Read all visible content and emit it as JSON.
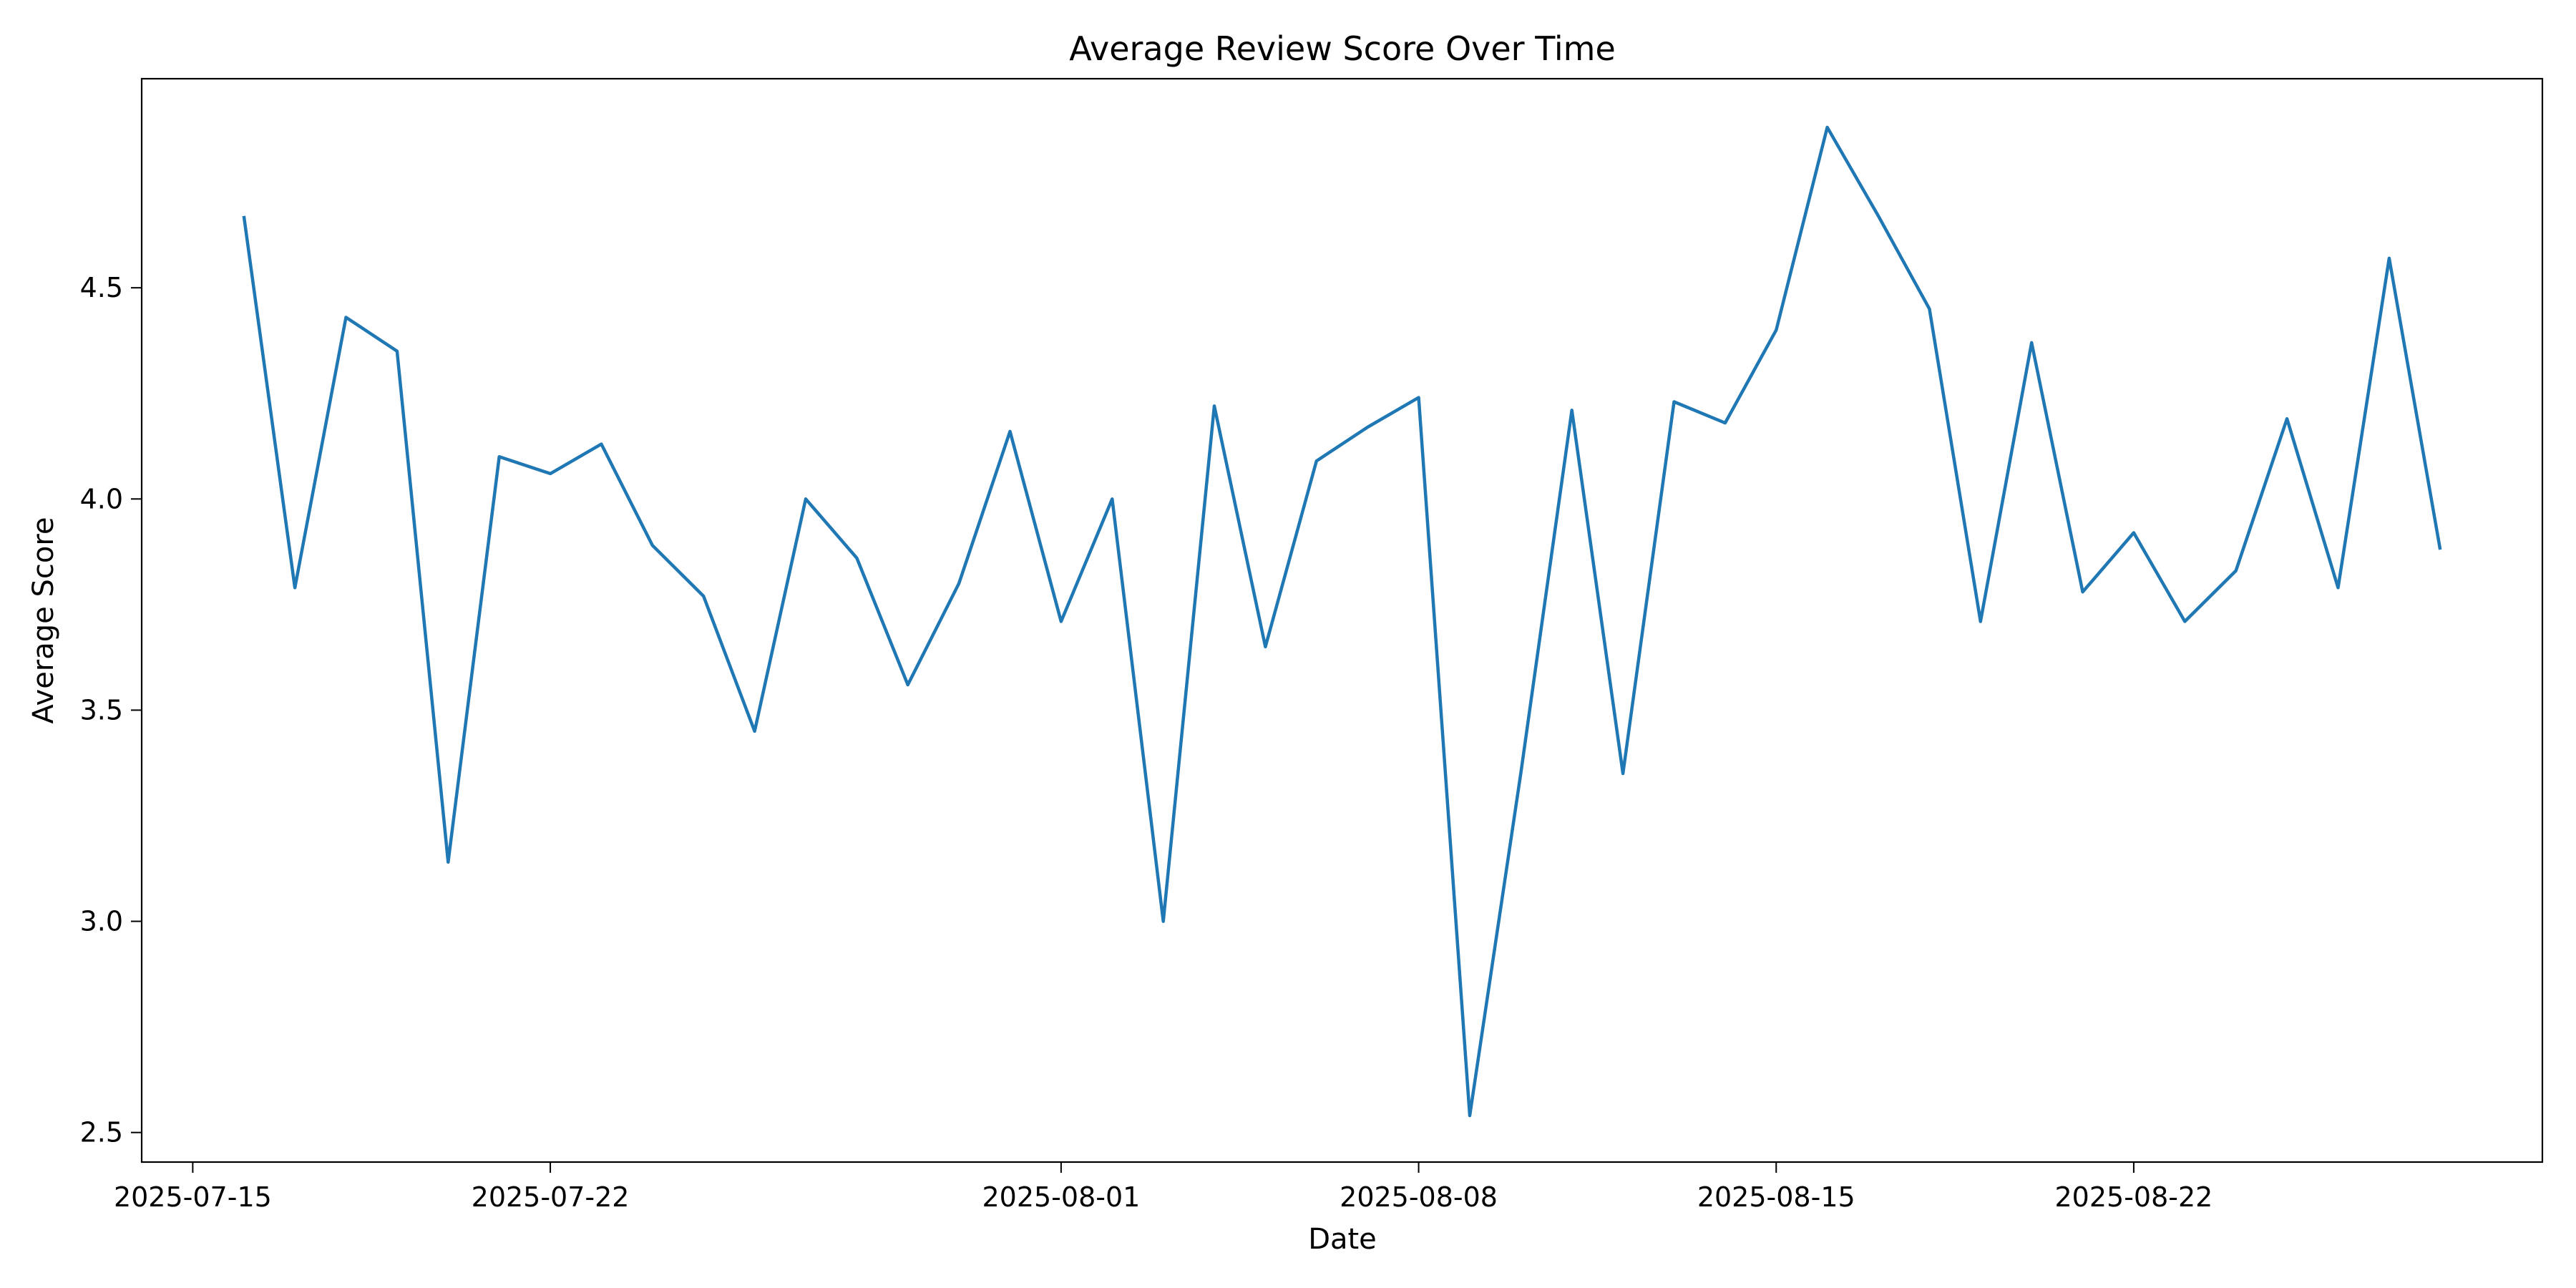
{
  "chart_data": {
    "type": "line",
    "title": "Average Review Score Over Time",
    "xlabel": "Date",
    "ylabel": "Average Score",
    "x_axis_type": "date",
    "xlim": [
      "2025-07-14",
      "2025-08-30"
    ],
    "ylim": [
      2.43,
      4.995
    ],
    "grid": false,
    "legend": "none",
    "x_ticks": [
      "2025-07-15",
      "2025-07-22",
      "2025-08-01",
      "2025-08-08",
      "2025-08-15",
      "2025-08-22"
    ],
    "y_ticks": [
      2.5,
      3.0,
      3.5,
      4.0,
      4.5
    ],
    "y_tick_labels": [
      "2.5",
      "3.0",
      "3.5",
      "4.0",
      "4.5"
    ],
    "colors": {
      "series": "#1f77b4"
    },
    "series": [
      {
        "x": [
          "2025-07-16",
          "2025-07-17",
          "2025-07-18",
          "2025-07-19",
          "2025-07-20",
          "2025-07-21",
          "2025-07-22",
          "2025-07-23",
          "2025-07-24",
          "2025-07-25",
          "2025-07-26",
          "2025-07-27",
          "2025-07-28",
          "2025-07-29",
          "2025-07-30",
          "2025-07-31",
          "2025-08-01",
          "2025-08-02",
          "2025-08-03",
          "2025-08-04",
          "2025-08-05",
          "2025-08-06",
          "2025-08-07",
          "2025-08-08",
          "2025-08-09",
          "2025-08-10",
          "2025-08-11",
          "2025-08-12",
          "2025-08-13",
          "2025-08-14",
          "2025-08-15",
          "2025-08-16",
          "2025-08-17",
          "2025-08-18",
          "2025-08-19",
          "2025-08-20",
          "2025-08-21",
          "2025-08-22",
          "2025-08-23",
          "2025-08-24",
          "2025-08-25",
          "2025-08-26",
          "2025-08-27",
          "2025-08-28"
        ],
        "values": [
          4.67,
          3.79,
          4.43,
          4.35,
          3.14,
          4.1,
          4.06,
          4.13,
          3.89,
          3.77,
          3.45,
          4.0,
          3.86,
          3.56,
          3.8,
          4.16,
          3.71,
          4.0,
          3.0,
          4.22,
          3.65,
          4.09,
          4.17,
          4.24,
          2.54,
          3.35,
          4.21,
          3.35,
          4.23,
          4.18,
          4.4,
          4.88,
          4.67,
          4.45,
          3.71,
          4.37,
          3.78,
          3.92,
          3.71,
          3.83,
          4.19,
          3.79,
          4.57,
          3.88
        ]
      }
    ]
  }
}
